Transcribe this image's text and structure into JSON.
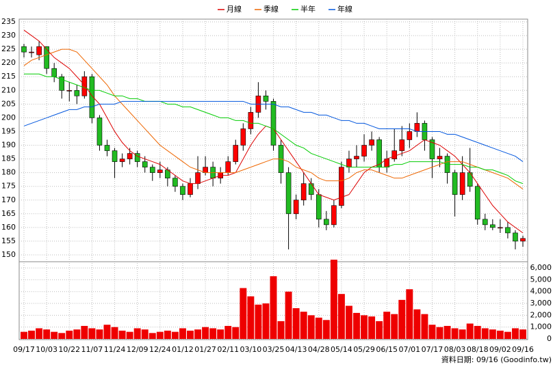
{
  "chart_data": {
    "type": "candlestick",
    "categories": [
      "09/17",
      null,
      null,
      "10/03",
      null,
      null,
      "10/22",
      null,
      null,
      "11/07",
      null,
      null,
      "11/24",
      null,
      null,
      "12/09",
      null,
      null,
      "12/24",
      null,
      null,
      "01/12",
      null,
      null,
      "01/27",
      null,
      null,
      "02/11",
      null,
      null,
      "03/10",
      null,
      null,
      "03/25",
      null,
      null,
      "04/13",
      null,
      null,
      "04/28",
      null,
      null,
      "05/14",
      null,
      null,
      "05/29",
      null,
      null,
      "06/15",
      null,
      null,
      "07/01",
      null,
      null,
      "07/17",
      null,
      null,
      "08/03",
      null,
      null,
      "08/18",
      null,
      null,
      "09/02",
      null,
      null,
      "09/16"
    ],
    "open": [
      226,
      224,
      223,
      226,
      218,
      215,
      210,
      210,
      208,
      215,
      200,
      190,
      188,
      184,
      185,
      187,
      184,
      182,
      180,
      181,
      178,
      175,
      172,
      176,
      180,
      182,
      178,
      180,
      184,
      190,
      196,
      202,
      208,
      206,
      190,
      180,
      165,
      170,
      176,
      172,
      163,
      161,
      168,
      182,
      185,
      186,
      190,
      192,
      182,
      185,
      188,
      192,
      195,
      198,
      192,
      185,
      186,
      180,
      172,
      180,
      175,
      163,
      161,
      160,
      160,
      158,
      155
    ],
    "high": [
      227,
      226,
      228,
      226,
      220,
      216,
      213,
      212,
      217,
      216,
      201,
      192,
      189,
      187,
      189,
      188,
      186,
      183,
      184,
      182,
      179,
      176,
      178,
      186,
      186,
      184,
      182,
      186,
      192,
      198,
      204,
      213,
      210,
      207,
      192,
      182,
      172,
      180,
      178,
      174,
      166,
      170,
      184,
      188,
      190,
      194,
      195,
      193,
      188,
      196,
      197,
      198,
      202,
      199,
      193,
      189,
      187,
      181,
      186,
      189,
      176,
      165,
      163,
      163,
      162,
      159,
      157
    ],
    "low": [
      222,
      222,
      221,
      216,
      213,
      207,
      206,
      205,
      207,
      198,
      188,
      186,
      178,
      182,
      183,
      182,
      180,
      177,
      178,
      175,
      173,
      170,
      171,
      174,
      179,
      175,
      176,
      179,
      183,
      188,
      194,
      200,
      203,
      188,
      176,
      152,
      163,
      168,
      170,
      160,
      159,
      160,
      167,
      180,
      182,
      184,
      188,
      180,
      180,
      184,
      186,
      189,
      193,
      188,
      178,
      182,
      176,
      164,
      170,
      173,
      161,
      159,
      159,
      158,
      156,
      152,
      153
    ],
    "close": [
      224,
      224,
      226,
      218,
      215,
      210,
      210,
      208,
      215,
      200,
      190,
      188,
      184,
      185,
      187,
      184,
      182,
      180,
      181,
      178,
      175,
      172,
      176,
      180,
      182,
      178,
      180,
      184,
      190,
      196,
      202,
      208,
      206,
      190,
      180,
      165,
      170,
      176,
      172,
      163,
      161,
      168,
      182,
      185,
      186,
      190,
      192,
      182,
      185,
      188,
      192,
      195,
      198,
      192,
      185,
      186,
      180,
      172,
      180,
      175,
      163,
      161,
      160,
      160,
      158,
      155,
      156
    ],
    "up_color": "#ff0000",
    "down_color": "#22bb22",
    "series": [
      {
        "name": "月線",
        "color": "#dd0000",
        "values": [
          232,
          230,
          228,
          225,
          222,
          220,
          218,
          215,
          212,
          208,
          205,
          200,
          195,
          191,
          188,
          186,
          185,
          184,
          183,
          181,
          179,
          177,
          176,
          176,
          177,
          178,
          179,
          179,
          180,
          185,
          190,
          194,
          197,
          196,
          192,
          188,
          184,
          180,
          176,
          172,
          171,
          170,
          171,
          172,
          176,
          180,
          182,
          183,
          185,
          186,
          187,
          188,
          190,
          192,
          191,
          190,
          188,
          186,
          183,
          180,
          176,
          172,
          168,
          165,
          162,
          160,
          158
        ]
      },
      {
        "name": "季線",
        "color": "#ee6600",
        "values": [
          219,
          221,
          222,
          223,
          224,
          225,
          225,
          224,
          221,
          218,
          215,
          212,
          208,
          205,
          202,
          199,
          196,
          193,
          190,
          188,
          186,
          184,
          182,
          181,
          180,
          180,
          180,
          180,
          180,
          181,
          182,
          183,
          184,
          185,
          185,
          184,
          182,
          181,
          180,
          178,
          177,
          177,
          177,
          178,
          180,
          181,
          181,
          180,
          179,
          178,
          178,
          179,
          180,
          181,
          182,
          183,
          184,
          184,
          184,
          183,
          182,
          181,
          180,
          179,
          178,
          176,
          174
        ]
      },
      {
        "name": "半年",
        "color": "#00cc00",
        "values": [
          216,
          216,
          216,
          215,
          215,
          214,
          213,
          212,
          211,
          210,
          210,
          209,
          208,
          208,
          207,
          207,
          206,
          206,
          206,
          205,
          205,
          204,
          204,
          203,
          202,
          201,
          200,
          200,
          199,
          199,
          198,
          198,
          197,
          196,
          194,
          192,
          190,
          189,
          187,
          186,
          185,
          184,
          183,
          182,
          182,
          182,
          182,
          182,
          182,
          183,
          183,
          184,
          184,
          184,
          184,
          184,
          183,
          183,
          183,
          182,
          182,
          181,
          181,
          180,
          179,
          177,
          176
        ]
      },
      {
        "name": "年線",
        "color": "#0055dd",
        "values": [
          197,
          198,
          199,
          200,
          201,
          202,
          203,
          203,
          204,
          204,
          205,
          205,
          205,
          206,
          206,
          206,
          206,
          206,
          206,
          206,
          206,
          206,
          206,
          206,
          206,
          206,
          206,
          206,
          206,
          206,
          205,
          205,
          205,
          205,
          204,
          204,
          203,
          202,
          202,
          201,
          201,
          200,
          199,
          199,
          198,
          198,
          197,
          196,
          196,
          196,
          196,
          196,
          195,
          195,
          195,
          195,
          194,
          194,
          193,
          192,
          191,
          190,
          189,
          188,
          187,
          186,
          184
        ]
      }
    ],
    "ylim": [
      148,
      236
    ],
    "yticks": [
      150,
      155,
      160,
      165,
      170,
      175,
      180,
      185,
      190,
      195,
      200,
      205,
      210,
      215,
      220,
      225,
      230,
      235
    ],
    "grid": true,
    "volume": {
      "color": "#ee0000",
      "values": [
        600,
        700,
        900,
        800,
        600,
        500,
        700,
        800,
        1100,
        900,
        800,
        1200,
        1000,
        700,
        600,
        900,
        800,
        500,
        600,
        700,
        600,
        900,
        700,
        800,
        1000,
        900,
        800,
        1100,
        1000,
        4300,
        3600,
        2900,
        3000,
        5300,
        1500,
        4000,
        2600,
        2300,
        2000,
        1800,
        1600,
        6700,
        3800,
        2800,
        2200,
        2000,
        1900,
        1500,
        2300,
        2100,
        3300,
        4200,
        2500,
        2100,
        1200,
        1000,
        1100,
        900,
        800,
        1300,
        1100,
        900,
        800,
        700,
        600,
        900,
        800
      ],
      "ylim": [
        0,
        6700
      ],
      "yticks": [
        0,
        {
          "value": 1000,
          "label": "1,000"
        },
        {
          "value": 2000,
          "label": "2,000"
        },
        {
          "value": 3000,
          "label": "3,000"
        },
        {
          "value": 4000,
          "label": "4,000"
        },
        {
          "value": 5000,
          "label": "5,000"
        },
        {
          "value": 6000,
          "label": "6,000"
        }
      ]
    },
    "note": "資料日期: 09/16  (Goodinfo.tw)"
  }
}
